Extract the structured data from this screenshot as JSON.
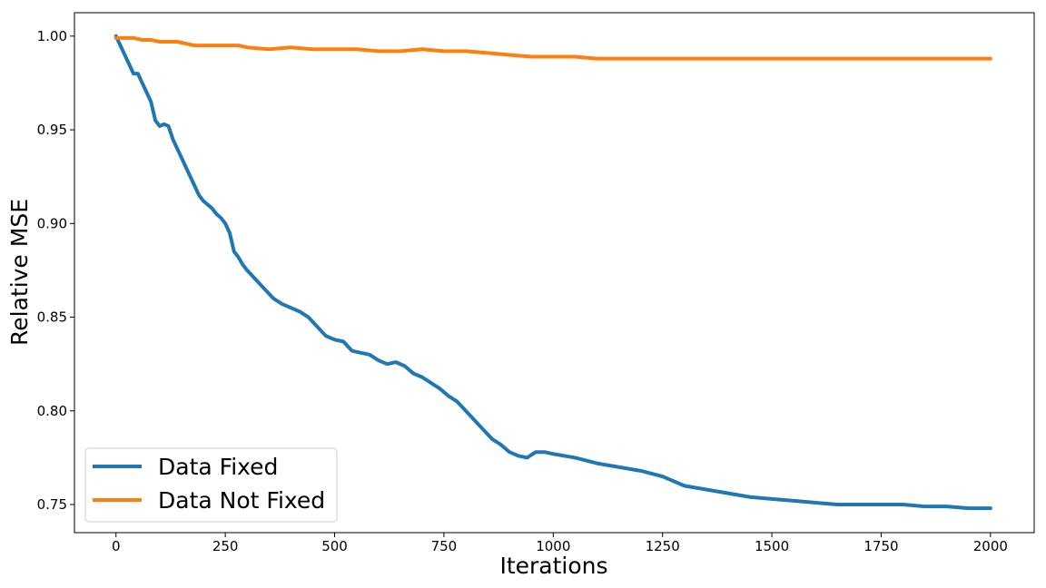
{
  "chart_data": {
    "type": "line",
    "title": "",
    "xlabel": "Iterations",
    "ylabel": "Relative MSE",
    "xlim": [
      -95,
      2100
    ],
    "ylim": [
      0.735,
      1.0125
    ],
    "xticks": [
      0,
      250,
      500,
      750,
      1000,
      1250,
      1500,
      1750,
      2000
    ],
    "xtick_labels": [
      "0",
      "250",
      "500",
      "750",
      "1000",
      "1250",
      "1500",
      "1750",
      "2000"
    ],
    "yticks": [
      0.75,
      0.8,
      0.85,
      0.9,
      0.95,
      1.0
    ],
    "ytick_labels": [
      "0.75",
      "0.80",
      "0.85",
      "0.90",
      "0.95",
      "1.00"
    ],
    "grid": false,
    "legend_position": "lower-left",
    "series": [
      {
        "name": "Data Fixed",
        "color": "#1f77b4",
        "x": [
          0,
          10,
          20,
          30,
          40,
          50,
          60,
          70,
          80,
          90,
          100,
          110,
          120,
          130,
          140,
          150,
          160,
          170,
          180,
          190,
          200,
          210,
          220,
          230,
          240,
          250,
          260,
          270,
          280,
          290,
          300,
          320,
          340,
          360,
          380,
          400,
          420,
          440,
          460,
          480,
          500,
          520,
          540,
          560,
          580,
          600,
          620,
          640,
          660,
          680,
          700,
          720,
          740,
          760,
          780,
          800,
          820,
          840,
          860,
          880,
          900,
          920,
          940,
          960,
          980,
          1000,
          1050,
          1100,
          1150,
          1200,
          1250,
          1300,
          1350,
          1400,
          1450,
          1500,
          1550,
          1600,
          1650,
          1700,
          1750,
          1800,
          1850,
          1900,
          1950,
          2000
        ],
        "y": [
          1.0,
          0.995,
          0.99,
          0.985,
          0.98,
          0.98,
          0.975,
          0.97,
          0.965,
          0.955,
          0.952,
          0.953,
          0.952,
          0.945,
          0.94,
          0.935,
          0.93,
          0.925,
          0.92,
          0.915,
          0.912,
          0.91,
          0.908,
          0.905,
          0.903,
          0.9,
          0.895,
          0.885,
          0.882,
          0.878,
          0.875,
          0.87,
          0.865,
          0.86,
          0.857,
          0.855,
          0.853,
          0.85,
          0.845,
          0.84,
          0.838,
          0.837,
          0.832,
          0.831,
          0.83,
          0.827,
          0.825,
          0.826,
          0.824,
          0.82,
          0.818,
          0.815,
          0.812,
          0.808,
          0.805,
          0.8,
          0.795,
          0.79,
          0.785,
          0.782,
          0.778,
          0.776,
          0.775,
          0.778,
          0.778,
          0.777,
          0.775,
          0.772,
          0.77,
          0.768,
          0.765,
          0.76,
          0.758,
          0.756,
          0.754,
          0.753,
          0.752,
          0.751,
          0.75,
          0.75,
          0.75,
          0.75,
          0.749,
          0.749,
          0.748,
          0.748
        ]
      },
      {
        "name": "Data Not Fixed",
        "color": "#ff7f0e",
        "x": [
          0,
          20,
          40,
          60,
          80,
          100,
          120,
          140,
          160,
          180,
          200,
          220,
          240,
          260,
          280,
          300,
          350,
          400,
          450,
          500,
          550,
          600,
          650,
          700,
          750,
          800,
          850,
          900,
          950,
          1000,
          1050,
          1100,
          1150,
          1200,
          1250,
          1300,
          1350,
          1400,
          1450,
          1500,
          1550,
          1600,
          1650,
          1700,
          1750,
          1800,
          1850,
          1900,
          1950,
          2000
        ],
        "y": [
          0.999,
          0.999,
          0.999,
          0.998,
          0.998,
          0.997,
          0.997,
          0.997,
          0.996,
          0.995,
          0.995,
          0.995,
          0.995,
          0.995,
          0.995,
          0.994,
          0.993,
          0.994,
          0.993,
          0.993,
          0.993,
          0.992,
          0.992,
          0.993,
          0.992,
          0.992,
          0.991,
          0.99,
          0.989,
          0.989,
          0.989,
          0.988,
          0.988,
          0.988,
          0.988,
          0.988,
          0.988,
          0.988,
          0.988,
          0.988,
          0.988,
          0.988,
          0.988,
          0.988,
          0.988,
          0.988,
          0.988,
          0.988,
          0.988,
          0.988
        ]
      }
    ]
  }
}
